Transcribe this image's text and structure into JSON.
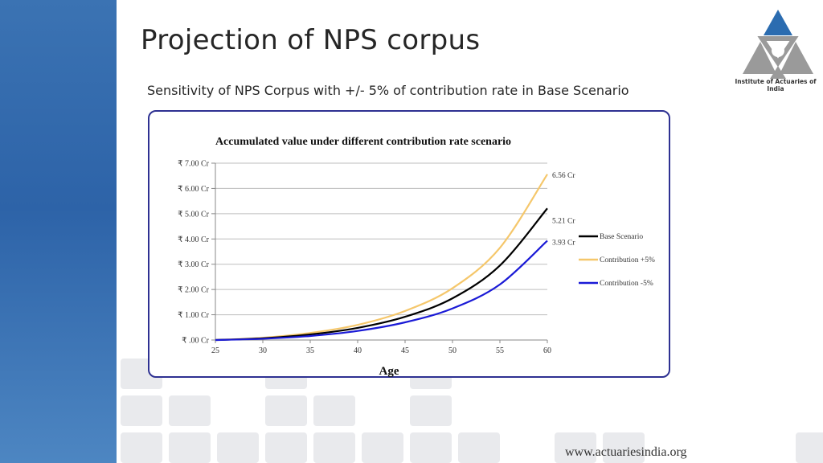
{
  "slide": {
    "title": "Projection of NPS corpus",
    "subtitle": "Sensitivity of NPS Corpus with +/- 5% of contribution rate in Base Scenario",
    "logo_caption": "Institute of Actuaries of India",
    "footer_url": "www.actuariesindia.org"
  },
  "colors": {
    "base": "#000000",
    "plus5": "#f5c76b",
    "minus5": "#1a1ad6",
    "frame": "#2e3192"
  },
  "chart_data": {
    "type": "line",
    "title": "Accumulated value under different contribution rate scenario",
    "xlabel": "Age",
    "ylabel": "",
    "xlim": [
      25,
      60
    ],
    "ylim": [
      0,
      7
    ],
    "x_ticks": [
      25,
      30,
      35,
      40,
      45,
      50,
      55,
      60
    ],
    "y_ticks": [
      0,
      1,
      2,
      3,
      4,
      5,
      6,
      7
    ],
    "y_tick_labels": [
      "₹ .00 Cr",
      "₹ 1.00 Cr",
      "₹ 2.00 Cr",
      "₹ 3.00 Cr",
      "₹ 4.00 Cr",
      "₹ 5.00 Cr",
      "₹ 6.00 Cr",
      "₹ 7.00 Cr"
    ],
    "grid": true,
    "legend_position": "right",
    "x": [
      25,
      30,
      35,
      40,
      45,
      50,
      55,
      60
    ],
    "series": [
      {
        "name": "Base Scenario",
        "color_key": "base",
        "values": [
          0,
          0.07,
          0.22,
          0.48,
          0.92,
          1.65,
          2.95,
          5.21
        ],
        "end_label": "5.21  Cr"
      },
      {
        "name": "Contribution +5%",
        "color_key": "plus5",
        "values": [
          0,
          0.09,
          0.28,
          0.6,
          1.15,
          2.05,
          3.65,
          6.56
        ],
        "end_label": "6.56 Cr"
      },
      {
        "name": "Contribution -5%",
        "color_key": "minus5",
        "values": [
          0,
          0.05,
          0.16,
          0.36,
          0.7,
          1.25,
          2.2,
          3.93
        ],
        "end_label": "3.93  Cr"
      }
    ]
  }
}
